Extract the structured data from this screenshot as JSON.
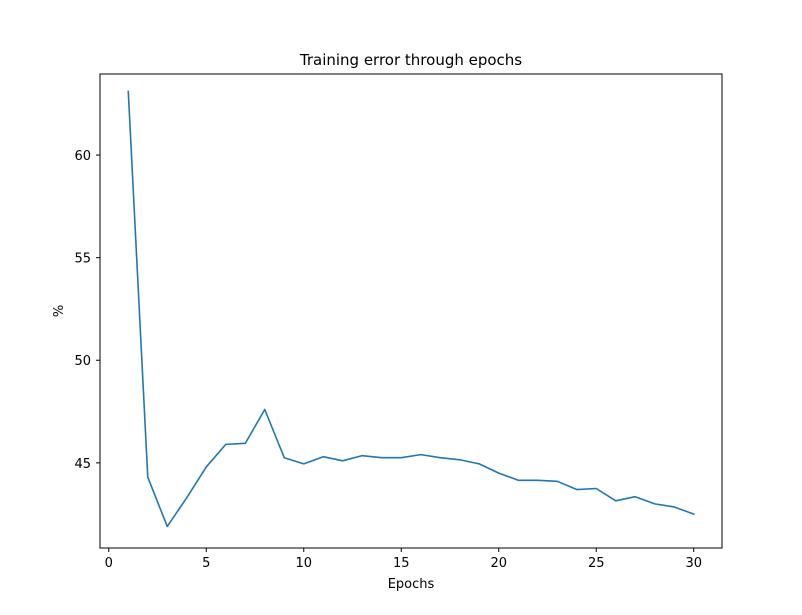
{
  "chart_data": {
    "type": "line",
    "title": "Training error through epochs",
    "xlabel": "Epochs",
    "ylabel": "%",
    "xlim": [
      -0.45,
      31.45
    ],
    "ylim": [
      40.85,
      63.95
    ],
    "xticks": [
      0,
      5,
      10,
      15,
      20,
      25,
      30
    ],
    "yticks": [
      45,
      50,
      55,
      60
    ],
    "grid": false,
    "series": [
      {
        "color": "#1f77b4",
        "x": [
          1,
          2,
          3,
          4,
          5,
          6,
          7,
          8,
          9,
          10,
          11,
          12,
          13,
          14,
          15,
          16,
          17,
          18,
          19,
          20,
          21,
          22,
          23,
          24,
          25,
          26,
          27,
          28,
          29,
          30
        ],
        "y": [
          63.1,
          44.3,
          41.9,
          43.3,
          44.8,
          45.9,
          45.95,
          47.6,
          45.25,
          44.95,
          45.3,
          45.1,
          45.35,
          45.25,
          45.25,
          45.4,
          45.25,
          45.15,
          44.95,
          44.5,
          44.15,
          44.15,
          44.1,
          43.7,
          43.75,
          43.15,
          43.35,
          43.0,
          42.85,
          42.5
        ]
      }
    ]
  }
}
